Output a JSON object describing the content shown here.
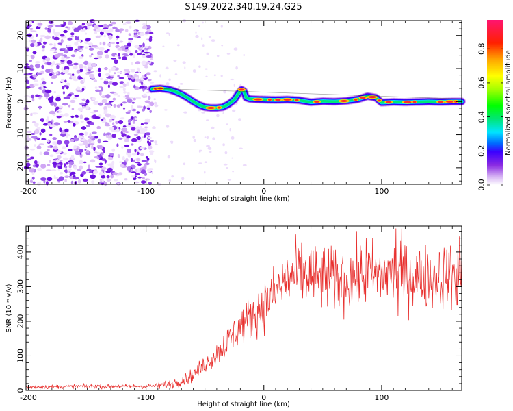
{
  "title": "S149.2022.340.19.24.G25",
  "chart_data": [
    {
      "type": "heatmap",
      "xlabel": "Height of straight line (km)",
      "ylabel": "Frequency (Hz)",
      "xlim": [
        -202,
        168
      ],
      "ylim": [
        -25,
        24.5
      ],
      "xticks": [
        -200,
        -100,
        0,
        100
      ],
      "yticks": [
        -20,
        -10,
        0,
        10,
        20
      ],
      "noise_region_x": [
        -202,
        -95
      ],
      "ridge": {
        "x": [
          -95,
          -88,
          -80,
          -75,
          -70,
          -65,
          -60,
          -55,
          -50,
          -45,
          -40,
          -35,
          -30,
          -25,
          -22,
          -19,
          -17,
          -15,
          -12,
          -8,
          0,
          10,
          20,
          30,
          40,
          50,
          60,
          70,
          80,
          88,
          95,
          100,
          110,
          120,
          130,
          140,
          150,
          160,
          168
        ],
        "y": [
          3.8,
          4.0,
          3.6,
          3.0,
          2.2,
          1.2,
          0.0,
          -1.0,
          -1.7,
          -1.9,
          -1.9,
          -1.7,
          -0.8,
          0.6,
          2.2,
          3.6,
          3.2,
          1.2,
          0.8,
          0.7,
          0.6,
          0.5,
          0.6,
          0.4,
          -0.2,
          0.1,
          0.0,
          0.2,
          0.7,
          1.6,
          1.2,
          -0.3,
          -0.1,
          -0.2,
          -0.1,
          0.0,
          -0.1,
          0.0,
          0.0
        ]
      },
      "colorbar": {
        "label": "Normalized spectral amplitude",
        "ticks": [
          "0.0",
          "0.2",
          "0.4",
          "0.6",
          "0.8"
        ],
        "tick_values": [
          0.0,
          0.2,
          0.4,
          0.6,
          0.8
        ],
        "range": [
          0,
          0.97
        ]
      }
    },
    {
      "type": "line",
      "xlabel": "Height of straight line (km)",
      "ylabel": "SNR (10 * v/v)",
      "xlim": [
        -202,
        168
      ],
      "ylim": [
        0,
        475
      ],
      "xticks": [
        -200,
        -100,
        0,
        100
      ],
      "yticks": [
        0,
        100,
        200,
        300,
        400
      ],
      "color": "#e8312f",
      "envelope": {
        "x": [
          -202,
          -150,
          -100,
          -90,
          -80,
          -70,
          -60,
          -50,
          -40,
          -30,
          -20,
          -10,
          0,
          10,
          20,
          30,
          40,
          50,
          60,
          70,
          80,
          90,
          100,
          110,
          120,
          130,
          140,
          150,
          160,
          168
        ],
        "y": [
          10,
          12,
          12,
          14,
          18,
          28,
          45,
          75,
          105,
          145,
          185,
          215,
          245,
          285,
          320,
          340,
          330,
          322,
          318,
          320,
          330,
          336,
          332,
          338,
          332,
          327,
          327,
          330,
          336,
          345
        ]
      },
      "peaks": [
        {
          "x": 112,
          "y": 468
        },
        {
          "x": 116,
          "y": 432
        },
        {
          "x": 114,
          "y": 215
        },
        {
          "x": 166,
          "y": 445
        },
        {
          "x": 164,
          "y": 248
        },
        {
          "x": 40,
          "y": 405
        },
        {
          "x": 55,
          "y": 410
        },
        {
          "x": 87,
          "y": 440
        }
      ]
    }
  ]
}
